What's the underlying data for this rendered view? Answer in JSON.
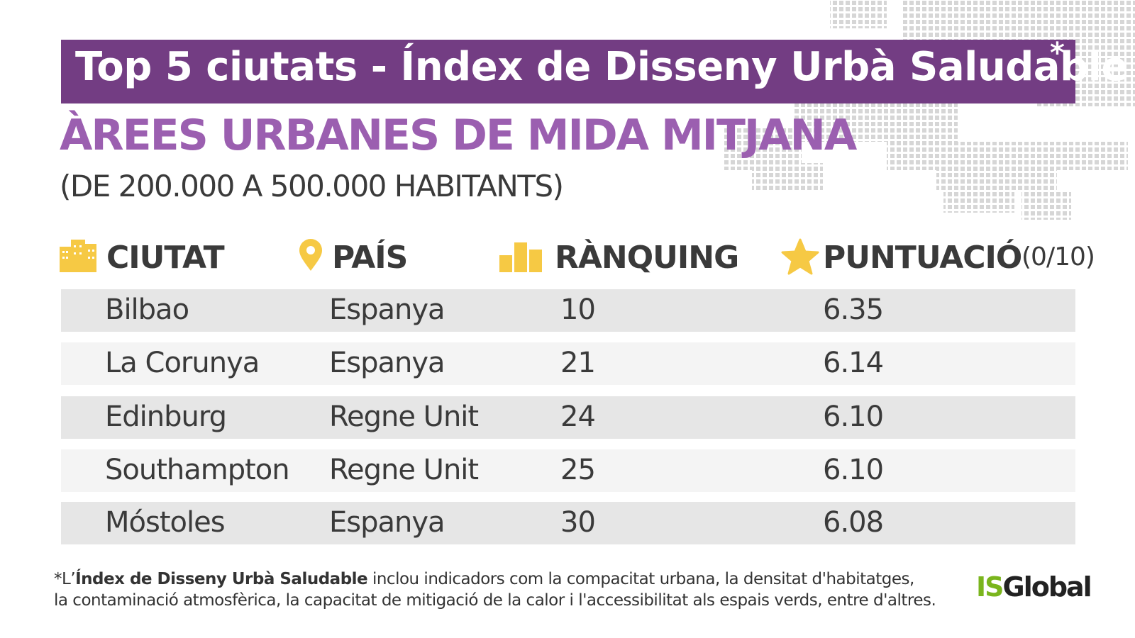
{
  "header": {
    "title": "Top 5 ciutats - Índex de Disseny Urbà Saludable",
    "title_mark": "*",
    "subtitle": "ÀREES URBANES DE MIDA MITJANA",
    "subtitle_note": "(DE 200.000 A 500.000 HABITANTS)"
  },
  "table": {
    "columns": [
      "CIUTAT",
      "PAÍS",
      "RÀNQUING",
      "PUNTUACIÓ"
    ],
    "score_scale": "(0/10)",
    "rows": [
      [
        "Bilbao",
        "Espanya",
        "10",
        "6.35"
      ],
      [
        "La Corunya",
        "Espanya",
        "21",
        "6.14"
      ],
      [
        "Edinburg",
        "Regne Unit",
        "24",
        "6.10"
      ],
      [
        "Southampton",
        "Regne Unit",
        "25",
        "6.10"
      ],
      [
        "Móstoles",
        "Espanya",
        "30",
        "6.08"
      ]
    ]
  },
  "footnote": {
    "prefix": "*L’",
    "bold": "Índex de Disseny Urbà Saludable",
    "line1": " inclou indicadors com la compacitat urbana, la densitat d'habitatges,",
    "line2": "la contaminació atmosfèrica, la capacitat de mitigació de la calor i l'accessibilitat als espais verds, entre d'altres."
  },
  "logo": {
    "part1": "IS",
    "part2": "Global"
  }
}
